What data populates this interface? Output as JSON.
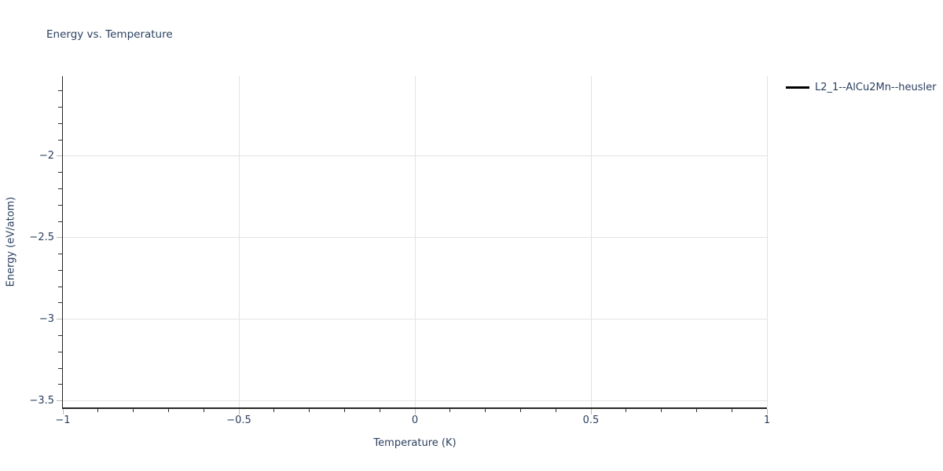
{
  "chart_data": {
    "type": "line",
    "title": "Energy vs. Temperature",
    "xlabel": "Temperature (K)",
    "ylabel": "Energy (eV/atom)",
    "xlim": [
      -1,
      1
    ],
    "ylim": [
      -3.54,
      -1.51
    ],
    "x_major_ticks": [
      -1,
      -0.5,
      0,
      0.5,
      1
    ],
    "x_tick_labels": [
      "−1",
      "−0.5",
      "0",
      "0.5",
      "1"
    ],
    "y_major_ticks": [
      -2,
      -2.5,
      -3,
      -3.5
    ],
    "y_tick_labels": [
      "−2",
      "−2.5",
      "−3",
      "−3.5"
    ],
    "minor_tick_step": 0.1,
    "major_tick_step": 0.5,
    "grid": true,
    "legend": {
      "position": "outside-top-right",
      "entries": [
        {
          "label": "L2_1--AlCu2Mn--heusler",
          "line_color": "#000000",
          "style": "solid-line"
        }
      ]
    },
    "series": [
      {
        "name": "L2_1--AlCu2Mn--heusler",
        "color": "#000000",
        "x": [],
        "y": [],
        "note": "no data points visible in plot area"
      }
    ],
    "colors": {
      "text": "#2a3f5f",
      "grid": "#e3e3e3",
      "axis": "#262626",
      "major_tick": "#b8b8b8",
      "minor_tick": "#303030",
      "legend_line": "#000000",
      "background": "#ffffff"
    }
  }
}
